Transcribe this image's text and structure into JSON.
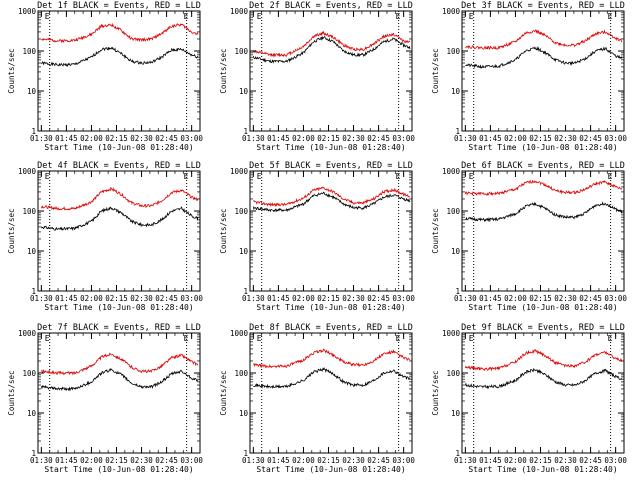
{
  "page": {
    "background": "#ffffff"
  },
  "colors": {
    "events": "#000000",
    "lld": "#dd0000",
    "axis": "#000000"
  },
  "chart_data": [
    {
      "type": "line",
      "title": "Det 1f BLACK = Events, RED = LLD",
      "xlabel": "Start Time (10-Jun-08 01:28:40)",
      "ylabel": "Counts/sec",
      "yscale": "log",
      "ylim": [
        1,
        1000
      ],
      "x_ticks": [
        "01:30",
        "01:45",
        "02:00",
        "02:15",
        "02:30",
        "02:45",
        "03:00"
      ],
      "y_ticks": [
        "1",
        "10",
        "100",
        "1000"
      ],
      "corner_labels": [
        "E",
        "E"
      ],
      "series": [
        {
          "name": "BLACK = Events",
          "color": "#000000",
          "x": [
            "01:30",
            "01:40",
            "01:50",
            "02:00",
            "02:06",
            "02:12",
            "02:18",
            "02:24",
            "02:30",
            "02:36",
            "02:42",
            "02:48",
            "02:54",
            "03:00",
            "03:04"
          ],
          "y": [
            50,
            45,
            46,
            70,
            110,
            120,
            85,
            55,
            50,
            52,
            70,
            105,
            110,
            80,
            70
          ]
        },
        {
          "name": "RED = LLD",
          "color": "#dd0000",
          "x": [
            "01:30",
            "01:40",
            "01:50",
            "02:00",
            "02:06",
            "02:12",
            "02:18",
            "02:24",
            "02:30",
            "02:36",
            "02:42",
            "02:48",
            "02:54",
            "03:00",
            "03:04"
          ],
          "y": [
            200,
            180,
            185,
            260,
            420,
            450,
            320,
            200,
            190,
            200,
            270,
            420,
            460,
            300,
            260
          ]
        }
      ]
    },
    {
      "type": "line",
      "title": "Det 2f BLACK = Events, RED = LLD",
      "xlabel": "Start Time (10-Jun-08 01:28:40)",
      "ylabel": "Counts/sec",
      "yscale": "log",
      "ylim": [
        1,
        1000
      ],
      "x_ticks": [
        "01:30",
        "01:45",
        "02:00",
        "02:15",
        "02:30",
        "02:45",
        "03:00"
      ],
      "y_ticks": [
        "1",
        "10",
        "100",
        "1000"
      ],
      "corner_labels": [
        "E",
        "E"
      ],
      "series": [
        {
          "name": "BLACK = Events",
          "color": "#000000",
          "x": [
            "01:30",
            "01:40",
            "01:50",
            "02:00",
            "02:06",
            "02:12",
            "02:18",
            "02:24",
            "02:30",
            "02:36",
            "02:42",
            "02:48",
            "02:54",
            "03:00",
            "03:04"
          ],
          "y": [
            70,
            55,
            55,
            90,
            170,
            220,
            170,
            100,
            80,
            80,
            110,
            170,
            200,
            140,
            120
          ]
        },
        {
          "name": "RED = LLD",
          "color": "#dd0000",
          "x": [
            "01:30",
            "01:40",
            "01:50",
            "02:00",
            "02:06",
            "02:12",
            "02:18",
            "02:24",
            "02:30",
            "02:36",
            "02:42",
            "02:48",
            "02:54",
            "03:00",
            "03:04"
          ],
          "y": [
            100,
            80,
            80,
            130,
            230,
            280,
            220,
            140,
            110,
            110,
            150,
            230,
            260,
            180,
            160
          ]
        }
      ]
    },
    {
      "type": "line",
      "title": "Det 3f BLACK = Events, RED = LLD",
      "xlabel": "Start Time (10-Jun-08 01:28:40)",
      "ylabel": "Counts/sec",
      "yscale": "log",
      "ylim": [
        1,
        1000
      ],
      "x_ticks": [
        "01:30",
        "01:45",
        "02:00",
        "02:15",
        "02:30",
        "02:45",
        "03:00"
      ],
      "y_ticks": [
        "1",
        "10",
        "100",
        "1000"
      ],
      "corner_labels": [
        "E",
        "E"
      ],
      "series": [
        {
          "name": "BLACK = Events",
          "color": "#000000",
          "x": [
            "01:30",
            "01:40",
            "01:50",
            "02:00",
            "02:06",
            "02:12",
            "02:18",
            "02:24",
            "02:30",
            "02:36",
            "02:42",
            "02:48",
            "02:54",
            "03:00",
            "03:04"
          ],
          "y": [
            45,
            40,
            42,
            60,
            100,
            120,
            90,
            60,
            50,
            50,
            65,
            100,
            115,
            75,
            65
          ]
        },
        {
          "name": "RED = LLD",
          "color": "#dd0000",
          "x": [
            "01:30",
            "01:40",
            "01:50",
            "02:00",
            "02:06",
            "02:12",
            "02:18",
            "02:24",
            "02:30",
            "02:36",
            "02:42",
            "02:48",
            "02:54",
            "03:00",
            "03:04"
          ],
          "y": [
            130,
            120,
            120,
            170,
            280,
            320,
            240,
            160,
            140,
            140,
            180,
            270,
            300,
            210,
            180
          ]
        }
      ]
    },
    {
      "type": "line",
      "title": "Det 4f BLACK = Events, RED = LLD",
      "xlabel": "Start Time (10-Jun-08 01:28:40)",
      "ylabel": "Counts/sec",
      "yscale": "log",
      "ylim": [
        1,
        1000
      ],
      "x_ticks": [
        "01:30",
        "01:45",
        "02:00",
        "02:15",
        "02:30",
        "02:45",
        "03:00"
      ],
      "y_ticks": [
        "1",
        "10",
        "100",
        "1000"
      ],
      "corner_labels": [
        "E",
        "E"
      ],
      "series": [
        {
          "name": "BLACK = Events",
          "color": "#000000",
          "x": [
            "01:30",
            "01:40",
            "01:50",
            "02:00",
            "02:06",
            "02:12",
            "02:18",
            "02:24",
            "02:30",
            "02:36",
            "02:42",
            "02:48",
            "02:54",
            "03:00",
            "03:04"
          ],
          "y": [
            40,
            35,
            37,
            55,
            100,
            120,
            90,
            55,
            45,
            45,
            60,
            100,
            115,
            75,
            65
          ]
        },
        {
          "name": "RED = LLD",
          "color": "#dd0000",
          "x": [
            "01:30",
            "01:40",
            "01:50",
            "02:00",
            "02:06",
            "02:12",
            "02:18",
            "02:24",
            "02:30",
            "02:36",
            "02:42",
            "02:48",
            "02:54",
            "03:00",
            "03:04"
          ],
          "y": [
            130,
            115,
            115,
            170,
            300,
            360,
            260,
            160,
            135,
            135,
            180,
            290,
            330,
            220,
            190
          ]
        }
      ]
    },
    {
      "type": "line",
      "title": "Det 5f BLACK = Events, RED = LLD",
      "xlabel": "Start Time (10-Jun-08 01:28:40)",
      "ylabel": "Counts/sec",
      "yscale": "log",
      "ylim": [
        1,
        1000
      ],
      "x_ticks": [
        "01:30",
        "01:45",
        "02:00",
        "02:15",
        "02:30",
        "02:45",
        "03:00"
      ],
      "y_ticks": [
        "1",
        "10",
        "100",
        "1000"
      ],
      "corner_labels": [
        "E",
        "E"
      ],
      "series": [
        {
          "name": "BLACK = Events",
          "color": "#000000",
          "x": [
            "01:30",
            "01:40",
            "01:50",
            "02:00",
            "02:06",
            "02:12",
            "02:18",
            "02:24",
            "02:30",
            "02:36",
            "02:42",
            "02:48",
            "02:54",
            "03:00",
            "03:04"
          ],
          "y": [
            120,
            105,
            105,
            150,
            240,
            280,
            220,
            150,
            120,
            120,
            150,
            220,
            250,
            200,
            180
          ]
        },
        {
          "name": "RED = LLD",
          "color": "#dd0000",
          "x": [
            "01:30",
            "01:40",
            "01:50",
            "02:00",
            "02:06",
            "02:12",
            "02:18",
            "02:24",
            "02:30",
            "02:36",
            "02:42",
            "02:48",
            "02:54",
            "03:00",
            "03:04"
          ],
          "y": [
            170,
            145,
            145,
            210,
            330,
            380,
            300,
            200,
            160,
            160,
            200,
            300,
            340,
            260,
            230
          ]
        }
      ]
    },
    {
      "type": "line",
      "title": "Det 6f BLACK = Events, RED = LLD",
      "xlabel": "Start Time (10-Jun-08 01:28:40)",
      "ylabel": "Counts/sec",
      "yscale": "log",
      "ylim": [
        1,
        1000
      ],
      "x_ticks": [
        "01:30",
        "01:45",
        "02:00",
        "02:15",
        "02:30",
        "02:45",
        "03:00"
      ],
      "y_ticks": [
        "1",
        "10",
        "100",
        "1000"
      ],
      "corner_labels": [
        "E",
        "E"
      ],
      "series": [
        {
          "name": "BLACK = Events",
          "color": "#000000",
          "x": [
            "01:30",
            "01:40",
            "01:50",
            "02:00",
            "02:06",
            "02:12",
            "02:18",
            "02:24",
            "02:30",
            "02:36",
            "02:42",
            "02:48",
            "02:54",
            "03:00",
            "03:04"
          ],
          "y": [
            65,
            60,
            62,
            85,
            130,
            150,
            115,
            80,
            70,
            70,
            90,
            140,
            155,
            110,
            95
          ]
        },
        {
          "name": "RED = LLD",
          "color": "#dd0000",
          "x": [
            "01:30",
            "01:40",
            "01:50",
            "02:00",
            "02:06",
            "02:12",
            "02:18",
            "02:24",
            "02:30",
            "02:36",
            "02:42",
            "02:48",
            "02:54",
            "03:00",
            "03:04"
          ],
          "y": [
            280,
            270,
            275,
            350,
            500,
            560,
            450,
            320,
            290,
            290,
            350,
            480,
            530,
            400,
            350
          ]
        }
      ]
    },
    {
      "type": "line",
      "title": "Det 7f BLACK = Events, RED = LLD",
      "xlabel": "Start Time (10-Jun-08 01:28:40)",
      "ylabel": "Counts/sec",
      "yscale": "log",
      "ylim": [
        1,
        1000
      ],
      "x_ticks": [
        "01:30",
        "01:45",
        "02:00",
        "02:15",
        "02:30",
        "02:45",
        "03:00"
      ],
      "y_ticks": [
        "1",
        "10",
        "100",
        "1000"
      ],
      "corner_labels": [
        "E",
        "E"
      ],
      "series": [
        {
          "name": "BLACK = Events",
          "color": "#000000",
          "x": [
            "01:30",
            "01:40",
            "01:50",
            "02:00",
            "02:06",
            "02:12",
            "02:18",
            "02:24",
            "02:30",
            "02:36",
            "02:42",
            "02:48",
            "02:54",
            "03:00",
            "03:04"
          ],
          "y": [
            45,
            40,
            40,
            60,
            100,
            120,
            90,
            55,
            45,
            45,
            60,
            95,
            110,
            75,
            65
          ]
        },
        {
          "name": "RED = LLD",
          "color": "#dd0000",
          "x": [
            "01:30",
            "01:40",
            "01:50",
            "02:00",
            "02:06",
            "02:12",
            "02:18",
            "02:24",
            "02:30",
            "02:36",
            "02:42",
            "02:48",
            "02:54",
            "03:00",
            "03:04"
          ],
          "y": [
            110,
            100,
            100,
            150,
            250,
            300,
            220,
            140,
            110,
            110,
            150,
            240,
            280,
            190,
            160
          ]
        }
      ]
    },
    {
      "type": "line",
      "title": "Det 8f BLACK = Events, RED = LLD",
      "xlabel": "Start Time (10-Jun-08 01:28:40)",
      "ylabel": "Counts/sec",
      "yscale": "log",
      "ylim": [
        1,
        1000
      ],
      "x_ticks": [
        "01:30",
        "01:45",
        "02:00",
        "02:15",
        "02:30",
        "02:45",
        "03:00"
      ],
      "y_ticks": [
        "1",
        "10",
        "100",
        "1000"
      ],
      "corner_labels": [
        "E",
        "E"
      ],
      "series": [
        {
          "name": "BLACK = Events",
          "color": "#000000",
          "x": [
            "01:30",
            "01:40",
            "01:50",
            "02:00",
            "02:06",
            "02:12",
            "02:18",
            "02:24",
            "02:30",
            "02:36",
            "02:42",
            "02:48",
            "02:54",
            "03:00",
            "03:04"
          ],
          "y": [
            50,
            45,
            46,
            65,
            105,
            125,
            95,
            60,
            50,
            50,
            65,
            100,
            115,
            80,
            70
          ]
        },
        {
          "name": "RED = LLD",
          "color": "#dd0000",
          "x": [
            "01:30",
            "01:40",
            "01:50",
            "02:00",
            "02:06",
            "02:12",
            "02:18",
            "02:24",
            "02:30",
            "02:36",
            "02:42",
            "02:48",
            "02:54",
            "03:00",
            "03:04"
          ],
          "y": [
            160,
            145,
            150,
            210,
            320,
            370,
            280,
            190,
            160,
            160,
            200,
            300,
            340,
            240,
            210
          ]
        }
      ]
    },
    {
      "type": "line",
      "title": "Det 9f BLACK = Events, RED = LLD",
      "xlabel": "Start Time (10-Jun-08 01:28:40)",
      "ylabel": "Counts/sec",
      "yscale": "log",
      "ylim": [
        1,
        1000
      ],
      "x_ticks": [
        "01:30",
        "01:45",
        "02:00",
        "02:15",
        "02:30",
        "02:45",
        "03:00"
      ],
      "y_ticks": [
        "1",
        "10",
        "100",
        "1000"
      ],
      "corner_labels": [
        "E",
        "E"
      ],
      "series": [
        {
          "name": "BLACK = Events",
          "color": "#000000",
          "x": [
            "01:30",
            "01:40",
            "01:50",
            "02:00",
            "02:06",
            "02:12",
            "02:18",
            "02:24",
            "02:30",
            "02:36",
            "02:42",
            "02:48",
            "02:54",
            "03:00",
            "03:04"
          ],
          "y": [
            50,
            45,
            46,
            65,
            105,
            120,
            90,
            60,
            50,
            50,
            65,
            100,
            115,
            80,
            70
          ]
        },
        {
          "name": "RED = LLD",
          "color": "#dd0000",
          "x": [
            "01:30",
            "01:40",
            "01:50",
            "02:00",
            "02:06",
            "02:12",
            "02:18",
            "02:24",
            "02:30",
            "02:36",
            "02:42",
            "02:48",
            "02:54",
            "03:00",
            "03:04"
          ],
          "y": [
            140,
            125,
            130,
            190,
            310,
            360,
            270,
            180,
            150,
            150,
            190,
            290,
            330,
            230,
            200
          ]
        }
      ]
    }
  ]
}
